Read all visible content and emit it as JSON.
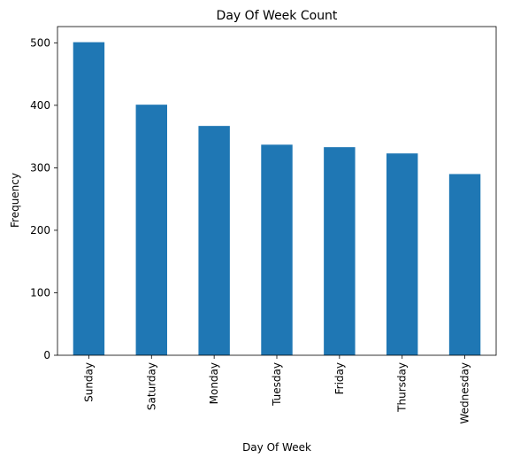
{
  "chart_data": {
    "type": "bar",
    "title": "Day Of Week Count",
    "xlabel": "Day Of Week",
    "ylabel": "Frequency",
    "categories": [
      "Sunday",
      "Saturday",
      "Monday",
      "Tuesday",
      "Friday",
      "Thursday",
      "Wednesday"
    ],
    "values": [
      501,
      401,
      367,
      337,
      333,
      323,
      290
    ],
    "ylim": [
      0,
      526
    ],
    "yticks": [
      0,
      100,
      200,
      300,
      400,
      500
    ],
    "bar_color": "#1f77b4",
    "grid": false,
    "legend": "none"
  }
}
